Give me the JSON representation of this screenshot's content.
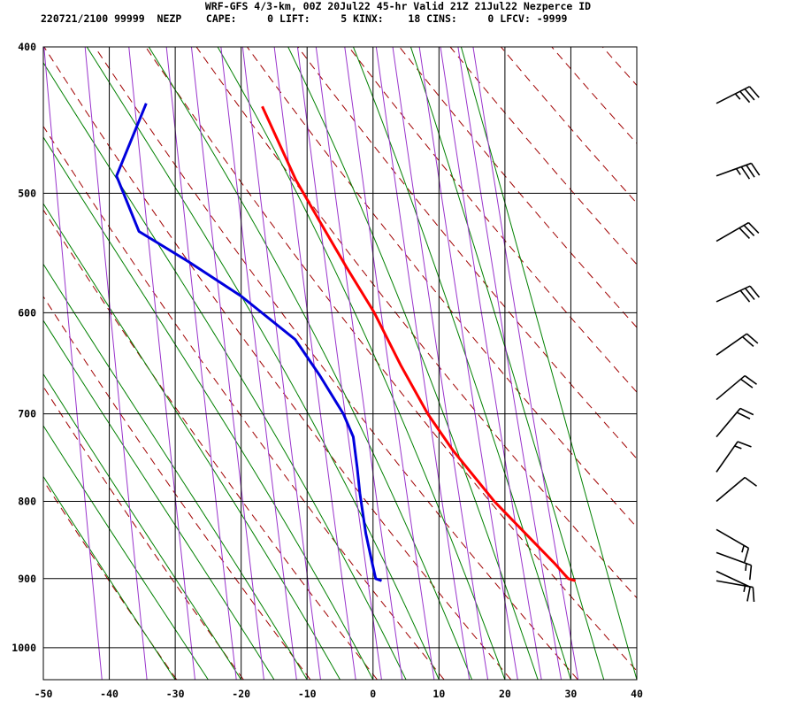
{
  "header": {
    "title": "WRF-GFS 4/3-km, 00Z 20Jul22 45-hr Valid 21Z 21Jul22 Nezperce ID",
    "info_line": "220721/2100 99999  NEZP    CAPE:     0 LIFT:     5 KINX:    18 CINS:     0 LFCV: -9999"
  },
  "colors": {
    "temperature": "#ff0000",
    "dewpoint": "#0000dd",
    "dry_adiabat": "#a00000",
    "moist_adiabat": "#008000",
    "mixing_ratio": "#9933cc",
    "grid": "#000000"
  },
  "chart_data": {
    "type": "line",
    "title": "",
    "xlabel": "",
    "ylabel": "",
    "x_scale": "skew-T temperature (C)",
    "y_scale": "log pressure (hPa)",
    "xlim": [
      -50,
      40
    ],
    "ylim": [
      1050,
      400
    ],
    "x_ticks": [
      -50,
      -40,
      -30,
      -20,
      -10,
      0,
      10,
      20,
      30,
      40
    ],
    "y_ticks": [
      400,
      500,
      600,
      700,
      800,
      900,
      1000
    ],
    "grid": true,
    "series": [
      {
        "role": "temperature",
        "points": [
          [
            30.7,
            903
          ],
          [
            29.6,
            900
          ],
          [
            27.6,
            880
          ],
          [
            23.1,
            840
          ],
          [
            18.4,
            800
          ],
          [
            12.1,
            740
          ],
          [
            8.3,
            700
          ],
          [
            4.2,
            650
          ],
          [
            0.2,
            600
          ],
          [
            -4.0,
            560
          ],
          [
            -8.3,
            520
          ],
          [
            -11.7,
            490
          ],
          [
            -16.8,
            438
          ]
        ]
      },
      {
        "role": "dewpoint",
        "points": [
          [
            1.3,
            903
          ],
          [
            0.4,
            900
          ],
          [
            -0.1,
            880
          ],
          [
            -1.1,
            840
          ],
          [
            -2.0,
            790
          ],
          [
            -2.4,
            760
          ],
          [
            -3.0,
            725
          ],
          [
            -4.5,
            700
          ],
          [
            -8.1,
            660
          ],
          [
            -11.8,
            625
          ],
          [
            -20.0,
            585
          ],
          [
            -28.0,
            555
          ],
          [
            -35.5,
            530
          ],
          [
            -38.9,
            487
          ],
          [
            -34.4,
            436
          ]
        ]
      }
    ],
    "wind_barbs": [
      {
        "p": 436,
        "speed_kt": 35,
        "dir_deg": 243
      },
      {
        "p": 487,
        "speed_kt": 35,
        "dir_deg": 250
      },
      {
        "p": 538,
        "speed_kt": 30,
        "dir_deg": 240
      },
      {
        "p": 590,
        "speed_kt": 30,
        "dir_deg": 245
      },
      {
        "p": 640,
        "speed_kt": 20,
        "dir_deg": 235
      },
      {
        "p": 685,
        "speed_kt": 20,
        "dir_deg": 230
      },
      {
        "p": 725,
        "speed_kt": 20,
        "dir_deg": 220
      },
      {
        "p": 765,
        "speed_kt": 15,
        "dir_deg": 215
      },
      {
        "p": 800,
        "speed_kt": 10,
        "dir_deg": 230
      },
      {
        "p": 835,
        "speed_kt": 15,
        "dir_deg": 300
      },
      {
        "p": 865,
        "speed_kt": 15,
        "dir_deg": 290
      },
      {
        "p": 890,
        "speed_kt": 15,
        "dir_deg": 295
      },
      {
        "p": 903,
        "speed_kt": 10,
        "dir_deg": 280
      }
    ]
  }
}
